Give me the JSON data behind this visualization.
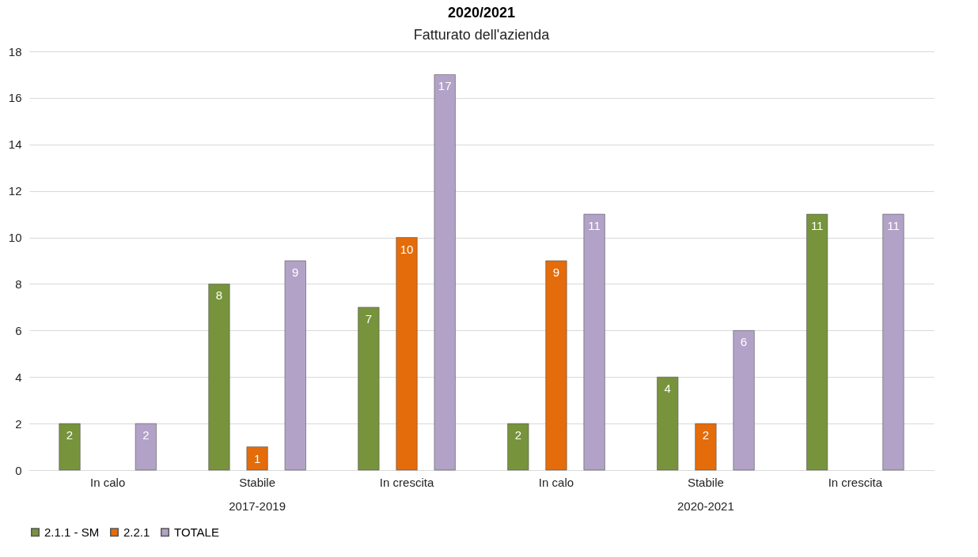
{
  "chart_data": {
    "type": "bar",
    "title": "2020/2021",
    "subtitle": "Fatturato dell'azienda",
    "categories": [
      "In calo",
      "Stabile",
      "In crescita",
      "In calo",
      "Stabile",
      "In crescita"
    ],
    "annotations": [
      "2017-2019",
      "2020-2021"
    ],
    "series": [
      {
        "name": "2.1.1 - SM",
        "color": "#77933c",
        "values": [
          2,
          8,
          7,
          2,
          4,
          11
        ]
      },
      {
        "name": "2.2.1",
        "color": "#e46c0a",
        "values": [
          null,
          1,
          10,
          9,
          2,
          null
        ]
      },
      {
        "name": "TOTALE",
        "color": "#b3a2c7",
        "values": [
          2,
          9,
          17,
          11,
          6,
          11
        ]
      }
    ],
    "ylim": [
      0,
      18
    ],
    "yticks": [
      0,
      2,
      4,
      6,
      8,
      10,
      12,
      14,
      16,
      18
    ],
    "grid": "y",
    "legend": "bottom",
    "data_labels": true
  }
}
